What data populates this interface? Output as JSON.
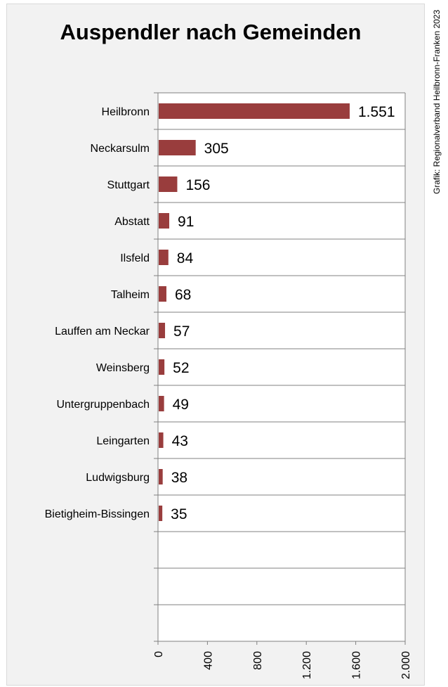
{
  "chart_data": {
    "type": "bar",
    "orientation": "horizontal",
    "title": "Auspendler nach Gemeinden",
    "source_note": "Grafik: Regionalverband Heilbronn-Franken 2023",
    "categories": [
      "Heilbronn",
      "Neckarsulm",
      "Stuttgart",
      "Abstatt",
      "Ilsfeld",
      "Talheim",
      "Lauffen am Neckar",
      "Weinsberg",
      "Untergruppenbach",
      "Leingarten",
      "Ludwigsburg",
      "Bietigheim-Bissingen"
    ],
    "values": [
      1551,
      305,
      156,
      91,
      84,
      68,
      57,
      52,
      49,
      43,
      38,
      35
    ],
    "value_labels": [
      "1.551",
      "305",
      "156",
      "91",
      "84",
      "68",
      "57",
      "52",
      "49",
      "43",
      "38",
      "35"
    ],
    "category_slots": 15,
    "xlim": [
      0,
      2000
    ],
    "x_ticks": [
      0,
      400,
      800,
      1200,
      1600,
      2000
    ],
    "x_tick_labels": [
      "0",
      "400",
      "800",
      "1.200",
      "1.600",
      "2.000"
    ],
    "grid": true,
    "bar_color": "#993d3d",
    "background_color": "#f2f2f2",
    "plot_background_color": "#ffffff",
    "grid_color": "#808080"
  }
}
